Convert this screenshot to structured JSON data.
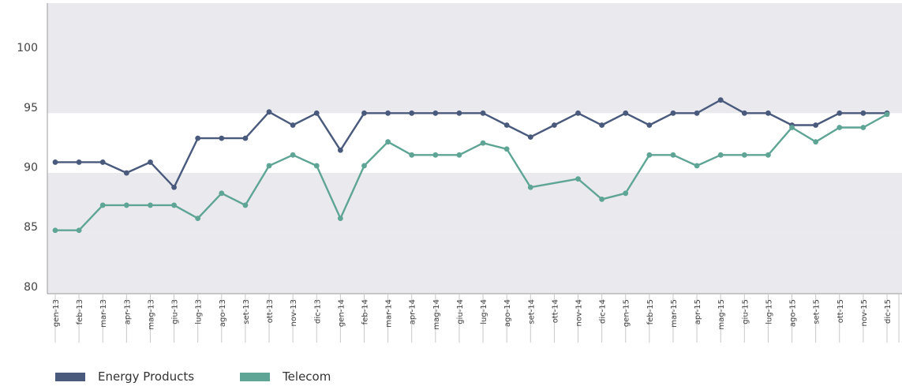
{
  "chart_data": {
    "type": "line",
    "categories": [
      "gen-13",
      "feb-13",
      "mar-13",
      "apr-13",
      "mag-13",
      "giu-13",
      "lug-13",
      "ago-13",
      "set-13",
      "ott-13",
      "nov-13",
      "dic-13",
      "gen-14",
      "feb-14",
      "mar-14",
      "apr-14",
      "mag-14",
      "giu-14",
      "lug-14",
      "ago-14",
      "set-14",
      "ott-14",
      "nov-14",
      "dic-14",
      "gen-15",
      "feb-15",
      "mar-15",
      "apr-15",
      "mag-15",
      "giu-15",
      "lug-15",
      "ago-15",
      "set-15",
      "ott-15",
      "nov-15",
      "dic-15"
    ],
    "series": [
      {
        "name": "Energy Products",
        "color": "#4a5a7c",
        "values": [
          90.4,
          90.4,
          90.4,
          89.5,
          90.4,
          88.3,
          92.4,
          92.4,
          92.4,
          94.6,
          93.5,
          94.5,
          91.4,
          94.5,
          94.5,
          94.5,
          94.5,
          94.5,
          94.5,
          93.5,
          92.5,
          93.5,
          94.5,
          93.5,
          94.5,
          93.5,
          94.5,
          94.5,
          95.6,
          94.5,
          94.5,
          93.5,
          93.5,
          94.5,
          94.5,
          94.5
        ]
      },
      {
        "name": "Telecom",
        "color": "#5fa596",
        "values": [
          84.7,
          84.7,
          86.8,
          86.8,
          86.8,
          86.8,
          85.7,
          87.8,
          86.8,
          90.1,
          91.0,
          90.1,
          85.7,
          90.1,
          92.1,
          91.0,
          91.0,
          91.0,
          92.0,
          91.5,
          88.3,
          null,
          89.0,
          87.3,
          87.8,
          91.0,
          91.0,
          90.1,
          91.0,
          91.0,
          91.0,
          93.3,
          92.1,
          93.3,
          93.3,
          94.4
        ]
      }
    ],
    "yticks": [
      80,
      85,
      90,
      95,
      100
    ],
    "ylim": [
      79.4,
      103.7
    ],
    "bands": [
      [
        94.5,
        103.7
      ],
      [
        84.5,
        89.5
      ],
      [
        79.4,
        84.5
      ]
    ],
    "grid": false,
    "legend_position": "bottom-left",
    "band_color": "#e9e9ee"
  }
}
